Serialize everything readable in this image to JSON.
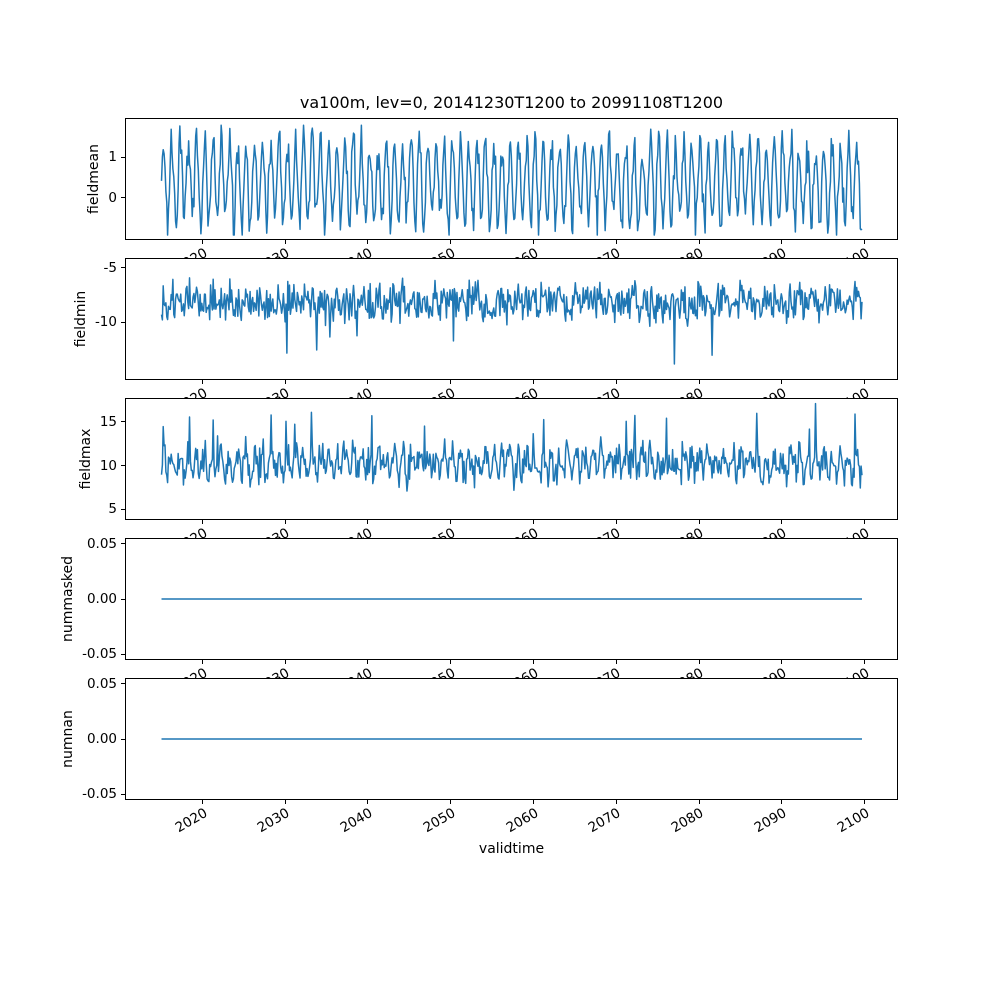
{
  "figure": {
    "title": "va100m, lev=0, 20141230T1200 to 20991108T1200",
    "background": "#ffffff",
    "axes_color": "#000000",
    "line_color": "#1f77b4"
  },
  "chart_data": {
    "type": "line",
    "title": "va100m, lev=0, 20141230T1200 to 20991108T1200",
    "xlabel": "validtime",
    "grid": false,
    "legend": "none",
    "x": {
      "ticks": [
        "2020",
        "2030",
        "2040",
        "2050",
        "2060",
        "2070",
        "2080",
        "2090",
        "2100"
      ],
      "tick_values": [
        2020,
        2030,
        2040,
        2050,
        2060,
        2070,
        2080,
        2090,
        2100
      ],
      "tick_rotation_deg": 30,
      "lim": [
        2010.7,
        2104.1
      ],
      "data_start": 2015.0,
      "data_end": 2099.86,
      "points": 800
    },
    "subplots": [
      {
        "ylabel": "fieldmean",
        "ytick_labels": [
          "1",
          "0"
        ],
        "ytick_values": [
          1,
          0
        ],
        "ylim": [
          -1.05,
          1.98
        ],
        "series_summary": {
          "mean": 0.4,
          "min": -0.95,
          "max": 1.8,
          "shape": "annual oscillation with noise"
        },
        "gen": {
          "base": 0.4,
          "season_amp": 0.95,
          "season_rand": 0.6,
          "noise": 0.3,
          "spike_prob": 0,
          "spike_amp": 0,
          "clamp": [
            -0.95,
            1.82
          ],
          "seed": 7
        }
      },
      {
        "ylabel": "fieldmin",
        "ytick_labels": [
          "-5",
          "-10"
        ],
        "ytick_values": [
          -5,
          -10
        ],
        "ylim": [
          -15.3,
          -4.1
        ],
        "series_summary": {
          "mean": -8.1,
          "min": -14.7,
          "max": -4.6,
          "shape": "dense noise with occasional deep downward spikes"
        },
        "gen": {
          "base": -8.1,
          "season_amp": 0.4,
          "season_rand": 0.5,
          "noise": 1.3,
          "spike_prob": 0.02,
          "spike_amp": -3.5,
          "clamp": [
            -14.7,
            -4.55
          ],
          "seed": 13
        }
      },
      {
        "ylabel": "fieldmax",
        "ytick_labels": [
          "15",
          "10",
          "5"
        ],
        "ytick_values": [
          15,
          10,
          5
        ],
        "ylim": [
          3.76,
          17.74
        ],
        "series_summary": {
          "mean": 10.2,
          "min": 5.4,
          "max": 17.2,
          "shape": "dense noise with occasional tall upward spikes"
        },
        "gen": {
          "base": 10.2,
          "season_amp": 1.0,
          "season_rand": 0.5,
          "noise": 1.5,
          "spike_prob": 0.025,
          "spike_amp": 3.8,
          "clamp": [
            5.4,
            17.2
          ],
          "seed": 29
        }
      },
      {
        "ylabel": "nummasked",
        "ytick_labels": [
          "0.05",
          "0.00",
          "-0.05"
        ],
        "ytick_values": [
          0.05,
          0,
          -0.05
        ],
        "ylim": [
          -0.055,
          0.055
        ],
        "series_summary": {
          "constant": 0
        },
        "gen": {
          "base": 0,
          "season_amp": 0,
          "season_rand": 0,
          "noise": 0,
          "spike_prob": 0,
          "spike_amp": 0,
          "clamp": [
            0,
            0
          ],
          "seed": 1
        }
      },
      {
        "ylabel": "numnan",
        "ytick_labels": [
          "0.05",
          "0.00",
          "-0.05"
        ],
        "ytick_values": [
          0.05,
          0,
          -0.05
        ],
        "ylim": [
          -0.055,
          0.055
        ],
        "series_summary": {
          "constant": 0
        },
        "gen": {
          "base": 0,
          "season_amp": 0,
          "season_rand": 0,
          "noise": 0,
          "spike_prob": 0,
          "spike_amp": 0,
          "clamp": [
            0,
            0
          ],
          "seed": 2
        }
      }
    ]
  }
}
